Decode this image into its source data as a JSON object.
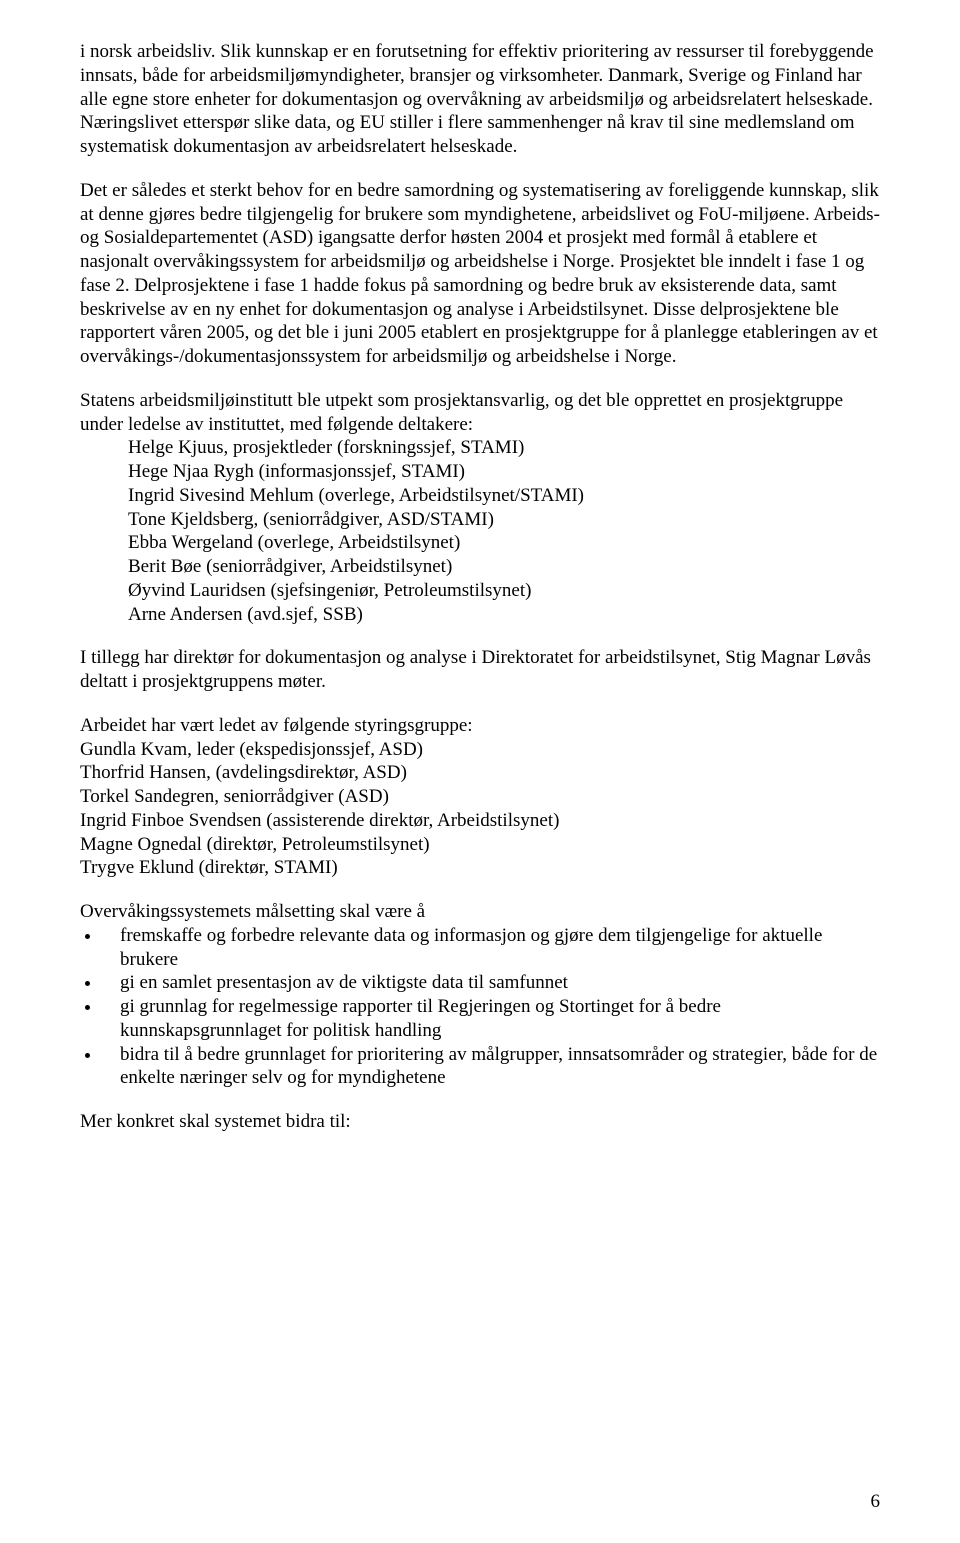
{
  "paragraphs": {
    "p1": "i norsk arbeidsliv. Slik kunnskap er en forutsetning for effektiv prioritering av ressurser til forebyggende innsats, både for arbeidsmiljømyndigheter, bransjer og virksomheter. Danmark, Sverige og Finland har alle egne store enheter for dokumentasjon og overvåkning av arbeidsmiljø og arbeidsrelatert helseskade. Næringslivet etterspør slike data, og EU stiller i flere sammenhenger nå krav til sine medlemsland om systematisk dokumentasjon av arbeidsrelatert helseskade.",
    "p2": "Det er således et sterkt behov for en bedre samordning og systematisering av foreliggende kunnskap, slik at denne gjøres bedre tilgjengelig for brukere som myndighetene, arbeidslivet og FoU-miljøene. Arbeids- og Sosialdepartementet (ASD) igangsatte derfor høsten 2004 et prosjekt med formål å etablere et nasjonalt overvåkingssystem for arbeidsmiljø og arbeidshelse i Norge. Prosjektet ble inndelt i fase 1 og fase 2. Delprosjektene i fase 1 hadde fokus på samordning og bedre bruk av eksisterende data, samt beskrivelse av en ny enhet for dokumentasjon og analyse i Arbeidstilsynet. Disse delprosjektene ble rapportert våren 2005, og det ble i juni 2005 etablert en prosjektgruppe for å planlegge etableringen av et overvåkings-/dokumentasjonssystem for arbeidsmiljø og arbeidshelse i Norge.",
    "p3_intro": "Statens arbeidsmiljøinstitutt ble utpekt som prosjektansvarlig, og det ble opprettet en prosjektgruppe under ledelse av instituttet, med følgende deltakere:",
    "p4": "I tillegg har direktør for dokumentasjon og analyse i Direktoratet for arbeidstilsynet, Stig Magnar Løvås deltatt i prosjektgruppens møter.",
    "p5_intro": "Arbeidet har vært ledet av følgende styringsgruppe:",
    "p6_intro": "Overvåkingssystemets målsetting skal være å",
    "p7": "Mer konkret skal systemet bidra til:"
  },
  "project_group": [
    "Helge Kjuus, prosjektleder (forskningssjef, STAMI)",
    "Hege Njaa Rygh (informasjonssjef, STAMI)",
    "Ingrid Sivesind Mehlum (overlege, Arbeidstilsynet/STAMI)",
    "Tone Kjeldsberg, (seniorrådgiver, ASD/STAMI)",
    "Ebba Wergeland (overlege, Arbeidstilsynet)",
    "Berit Bøe (seniorrådgiver, Arbeidstilsynet)",
    "Øyvind Lauridsen (sjefsingeniør, Petroleumstilsynet)",
    "Arne Andersen (avd.sjef, SSB)"
  ],
  "steering_group": [
    "Gundla Kvam, leder (ekspedisjonssjef, ASD)",
    "Thorfrid Hansen, (avdelingsdirektør, ASD)",
    "Torkel Sandegren, seniorrådgiver (ASD)",
    "Ingrid Finboe Svendsen (assisterende direktør, Arbeidstilsynet)",
    "Magne Ognedal (direktør, Petroleumstilsynet)",
    "Trygve Eklund (direktør, STAMI)"
  ],
  "objectives": [
    "fremskaffe og forbedre relevante data og informasjon og gjøre dem tilgjengelige for aktuelle brukere",
    "gi en samlet presentasjon av de viktigste data til samfunnet",
    "gi grunnlag for regelmessige rapporter til Regjeringen og Stortinget for å bedre kunnskapsgrunnlaget for politisk handling",
    "bidra til å bedre grunnlaget for prioritering av målgrupper, innsatsområder og strategier, både for de enkelte næringer selv og for myndighetene"
  ],
  "page_number": "6",
  "style": {
    "font_family": "Times New Roman",
    "font_size_pt": 14,
    "text_color": "#000000",
    "background_color": "#ffffff",
    "bullet_color": "#000000"
  }
}
